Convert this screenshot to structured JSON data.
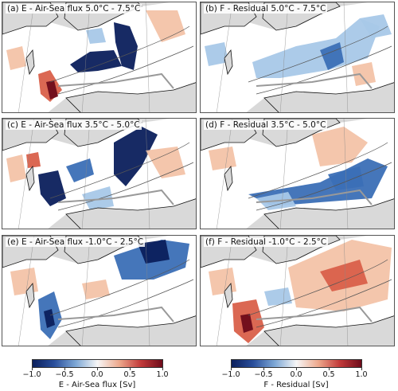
{
  "panels": [
    {
      "title": "(a) E - Air-Sea flux 5.0$^\\circ$C - 7.5$^\\circ$C",
      "title_text": "(a) E - Air-Sea flux 5.0°C - 7.5°C",
      "type": "E",
      "pattern": "a"
    },
    {
      "title_text": "(b) F - Residual 5.0°C - 7.5°C",
      "type": "F",
      "pattern": "b"
    },
    {
      "title_text": "(c) E - Air-Sea flux 3.5°C - 5.0°C",
      "type": "E",
      "pattern": "c"
    },
    {
      "title_text": "(d) F - Residual 3.5°C - 5.0°C",
      "type": "F",
      "pattern": "d"
    },
    {
      "title_text": "(e) E - Air-Sea flux -1.0°C - 2.5°C",
      "type": "E",
      "pattern": "e"
    },
    {
      "title_text": "(f) F - Residual -1.0°C - 2.5°C",
      "type": "F",
      "pattern": "f"
    }
  ],
  "colorbars": [
    {
      "label": "E - Air-Sea flux [Sv]",
      "ticks": [
        "−1.0",
        "−0.5",
        "0.0",
        "0.5",
        "1.0"
      ],
      "tick_values": [
        -1.0,
        -0.5,
        0.0,
        0.5,
        1.0
      ]
    },
    {
      "label": "F - Residual [Sv]",
      "ticks": [
        "−1.0",
        "−0.5",
        "0.0",
        "0.5",
        "1.0"
      ],
      "tick_values": [
        -1.0,
        -0.5,
        0.0,
        0.5,
        1.0
      ]
    }
  ],
  "colors": {
    "land": "#d9d9d9",
    "ocean_white": "#ffffff",
    "neg_strong": "#0b1f5c",
    "neg_mid": "#3b6fb6",
    "neg_light": "#a8c8e8",
    "pos_light": "#f3c3a8",
    "pos_mid": "#d9604a",
    "pos_strong": "#6e0b1a"
  }
}
